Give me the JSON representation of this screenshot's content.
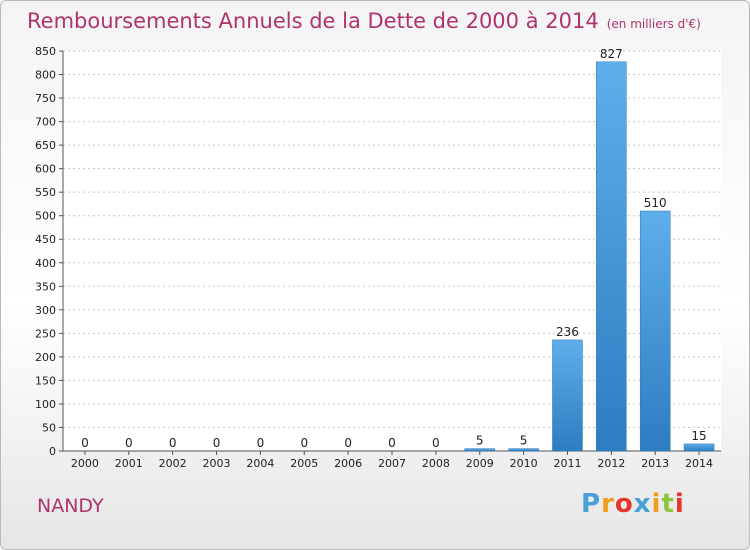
{
  "header": {
    "title": "Remboursements Annuels de la Dette de 2000 à 2014",
    "subtitle": "(en milliers d'€)"
  },
  "footer": {
    "city": "NANDY",
    "logo_text": "Proxiti",
    "logo_colors": [
      "#4a9fd8",
      "#f29b1d",
      "#e8352c",
      "#4a9fd8",
      "#f29b1d",
      "#8cc63f",
      "#e8352c"
    ]
  },
  "colors": {
    "bar_top": "#5dafea",
    "bar_bottom": "#2d7cc1",
    "title": "#b0336e",
    "grid": "#c8c8c8"
  },
  "chart_data": {
    "type": "bar",
    "title": "Remboursements Annuels de la Dette de 2000 à 2014",
    "subtitle": "(en milliers d'€)",
    "categories": [
      "2000",
      "2001",
      "2002",
      "2003",
      "2004",
      "2005",
      "2006",
      "2007",
      "2008",
      "2009",
      "2010",
      "2011",
      "2012",
      "2013",
      "2014"
    ],
    "values": [
      0,
      0,
      0,
      0,
      0,
      0,
      0,
      0,
      0,
      5,
      5,
      236,
      827,
      510,
      15
    ],
    "ylim": [
      0,
      850
    ],
    "yticks": [
      0,
      50,
      100,
      150,
      200,
      250,
      300,
      350,
      400,
      450,
      500,
      550,
      600,
      650,
      700,
      750,
      800,
      850
    ],
    "grid": true
  }
}
